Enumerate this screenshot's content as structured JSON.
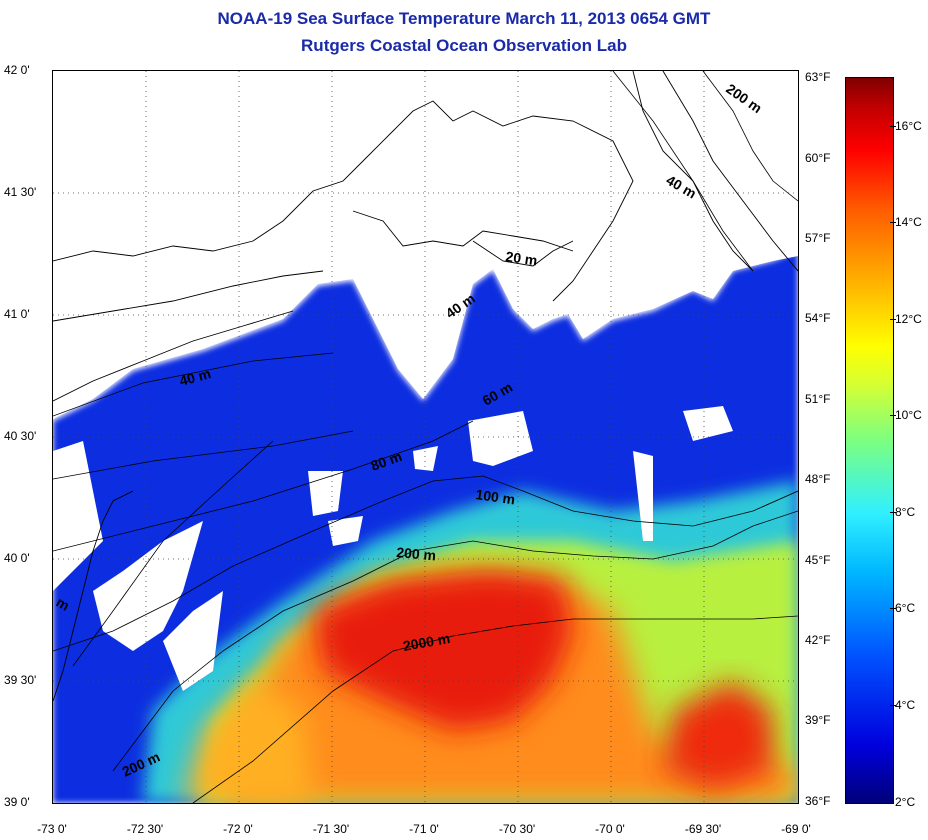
{
  "title": {
    "line1": "NOAA-19 Sea Surface Temperature March 11, 2013 0654 GMT",
    "line2": "Rutgers Coastal Ocean Observation Lab"
  },
  "axes": {
    "lat_labels": [
      "42 0'",
      "41 30'",
      "41 0'",
      "40 30'",
      "40 0'",
      "39 30'",
      "39 0'"
    ],
    "lon_labels": [
      "-73 0'",
      "-72 30'",
      "-72 0'",
      "-71 30'",
      "-71 0'",
      "-70 30'",
      "-70 0'",
      "-69 30'",
      "-69 0'"
    ]
  },
  "contours": {
    "labels": [
      "200 m",
      "40 m",
      "20 m",
      "40 m",
      "40 m",
      "60 m",
      "80 m",
      "100 m",
      "200 m",
      "2000 m",
      "200 m",
      "m"
    ]
  },
  "colorbar": {
    "fahrenheit": [
      "63°F",
      "60°F",
      "57°F",
      "54°F",
      "51°F",
      "48°F",
      "45°F",
      "42°F",
      "39°F",
      "36°F"
    ],
    "celsius": [
      "16°C",
      "14°C",
      "12°C",
      "10°C",
      "8°C",
      "6°C",
      "4°C",
      "2°C"
    ]
  },
  "colors": {
    "title": "#1a2aa8",
    "cold": "#0000dd",
    "mid": "#40e0d0",
    "warm": "#ff3300"
  }
}
